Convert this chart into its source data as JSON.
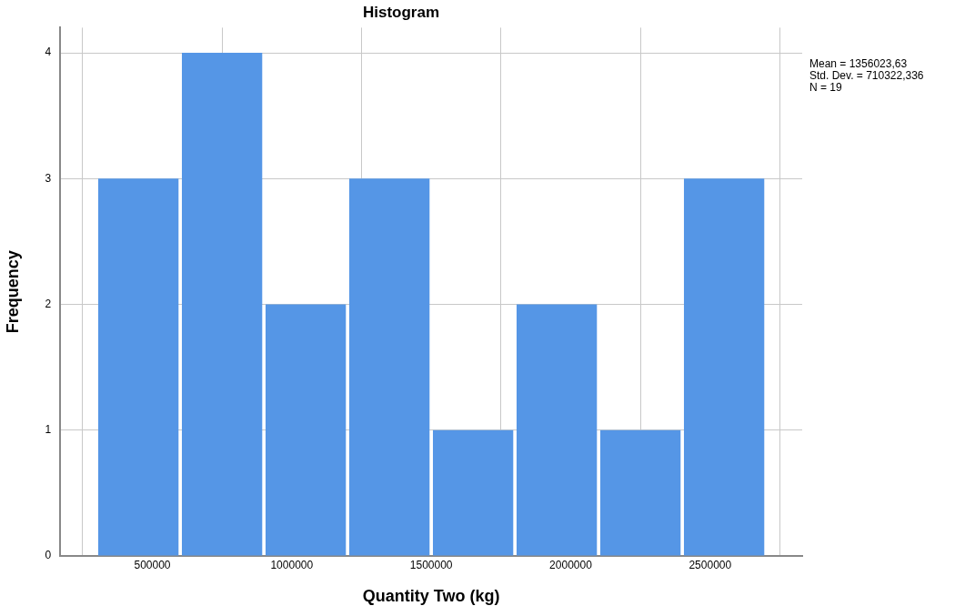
{
  "chart_data": {
    "type": "histogram",
    "title": "Histogram",
    "xlabel": "Quantity Two (kg)",
    "ylabel": "Frequency",
    "bins": [
      300000,
      600000,
      900000,
      1200000,
      1500000,
      1800000,
      2100000,
      2400000,
      2700000
    ],
    "values": [
      3,
      4,
      2,
      3,
      1,
      2,
      1,
      3
    ],
    "color": "#5596e6",
    "xlim": [
      170000,
      2830000
    ],
    "xticks": [
      500000,
      1000000,
      1500000,
      2000000,
      2500000
    ],
    "ylim": [
      0,
      4.2
    ],
    "yticks": [
      0,
      1,
      2,
      3,
      4
    ],
    "grid": true,
    "legend": false,
    "annotations": [
      "Mean = 1356023,63",
      "Std. Dev. = 710322,336",
      "N = 19"
    ]
  }
}
